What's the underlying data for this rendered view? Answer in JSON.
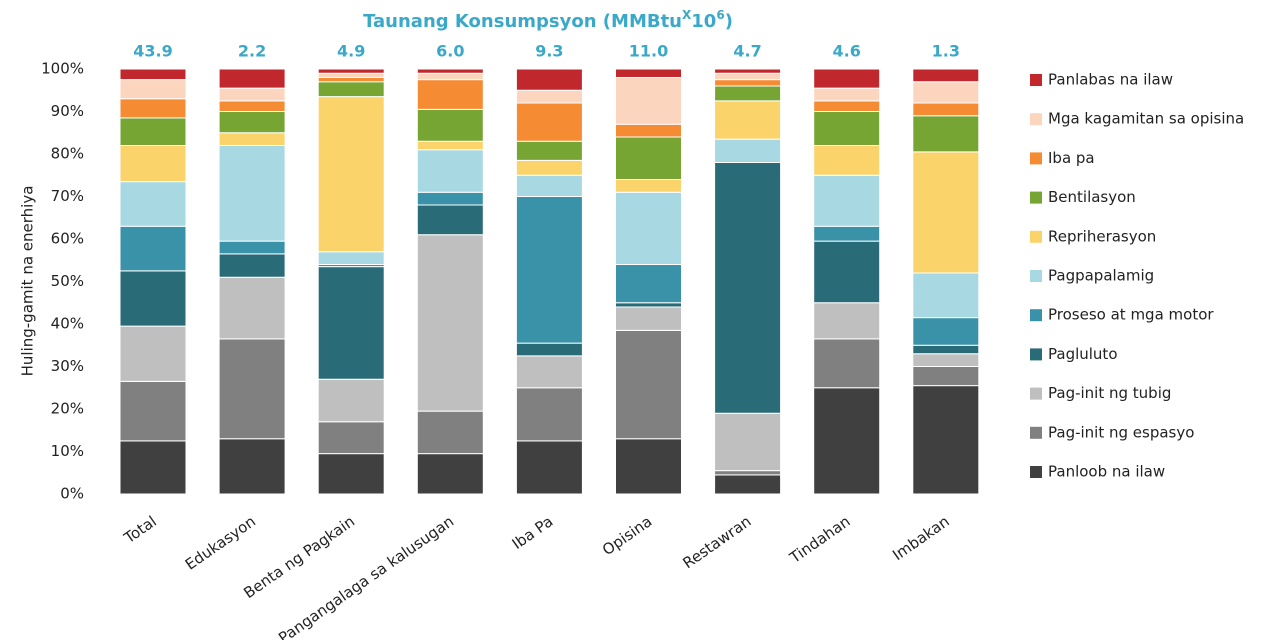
{
  "chart_data": {
    "type": "stacked_bar_100",
    "title": [
      {
        "text": "Taunang Konsumpsyon (MMBtu"
      },
      {
        "text": "X",
        "sup": true
      },
      {
        "text": "10"
      },
      {
        "text": "6",
        "sup": true
      },
      {
        "text": ")"
      }
    ],
    "y_label": "Huling-gamit na enerhiya",
    "categories": [
      "Total",
      "Edukasyon",
      "Benta ng Pagkain",
      "Pangangalaga sa kalusugan",
      "Iba Pa",
      "Opisina",
      "Restawran",
      "Tindahan",
      "Imbakan"
    ],
    "totals": [
      43.9,
      2.2,
      4.9,
      6.0,
      9.3,
      11.0,
      4.7,
      4.6,
      1.3
    ],
    "totals_labels": [
      "43.9",
      "2.2",
      "4.9",
      "6.0",
      "9.3",
      "11.0",
      "4.7",
      "4.6",
      "1.3"
    ],
    "ylim": [
      0,
      100
    ],
    "yticks": [
      {
        "value": 0,
        "label": "0%"
      },
      {
        "value": 10,
        "label": "10%"
      },
      {
        "value": 20,
        "label": "20%"
      },
      {
        "value": 30,
        "label": "30%"
      },
      {
        "value": 40,
        "label": "40%"
      },
      {
        "value": 50,
        "label": "50%"
      },
      {
        "value": 60,
        "label": "60%"
      },
      {
        "value": 70,
        "label": "70%"
      },
      {
        "value": 80,
        "label": "80%"
      },
      {
        "value": 90,
        "label": "90%"
      },
      {
        "value": 100,
        "label": "100%"
      }
    ],
    "grid": false,
    "legend": "right",
    "series": [
      {
        "name": "Panloob na ilaw",
        "color": "#404040",
        "values": [
          12.5,
          13,
          9.5,
          9.5,
          12.5,
          13,
          4.5,
          25,
          25.5
        ]
      },
      {
        "name": "Pag-init ng espasyo",
        "color": "#808080",
        "values": [
          14,
          23.5,
          7.5,
          10,
          12.5,
          25.5,
          1,
          11.5,
          4.5
        ]
      },
      {
        "name": "Pag-init ng tubig",
        "color": "#bfbfbf",
        "values": [
          13,
          14.5,
          10,
          41.5,
          7.5,
          5.5,
          13.5,
          8.5,
          3
        ]
      },
      {
        "name": "Pagluluto",
        "color": "#2a6b78",
        "values": [
          13,
          5.5,
          26.5,
          7,
          3,
          1,
          59,
          14.5,
          2
        ]
      },
      {
        "name": "Proseso at mga motor",
        "color": "#3a92a8",
        "values": [
          10.5,
          3,
          0.5,
          3,
          34.5,
          9,
          0,
          3.5,
          6.5
        ]
      },
      {
        "name": "Pagpapalamig",
        "color": "#a8d8e2",
        "values": [
          10.5,
          22.5,
          3,
          10,
          5,
          17,
          5.5,
          12,
          10.5
        ]
      },
      {
        "name": "Repriherasyon",
        "color": "#fbd36b",
        "values": [
          8.5,
          3,
          36.5,
          2,
          3.5,
          3,
          9,
          7,
          28.5
        ]
      },
      {
        "name": "Bentilasyon",
        "color": "#77a534",
        "values": [
          6.5,
          5,
          3.5,
          7.5,
          4.5,
          10,
          3.5,
          8,
          8.5
        ]
      },
      {
        "name": "Iba pa",
        "color": "#f58b33",
        "values": [
          4.5,
          2.5,
          1,
          7,
          9,
          3,
          1.5,
          2.5,
          3
        ]
      },
      {
        "name": "Mga kagamitan sa opisina",
        "color": "#fbd5bd",
        "values": [
          4.5,
          3,
          1,
          1.5,
          3,
          11,
          1.5,
          3,
          5
        ]
      },
      {
        "name": "Panlabas na ilaw",
        "color": "#c0282d",
        "values": [
          2.5,
          4.5,
          1,
          1,
          5,
          2,
          1,
          4.5,
          3
        ]
      }
    ]
  }
}
